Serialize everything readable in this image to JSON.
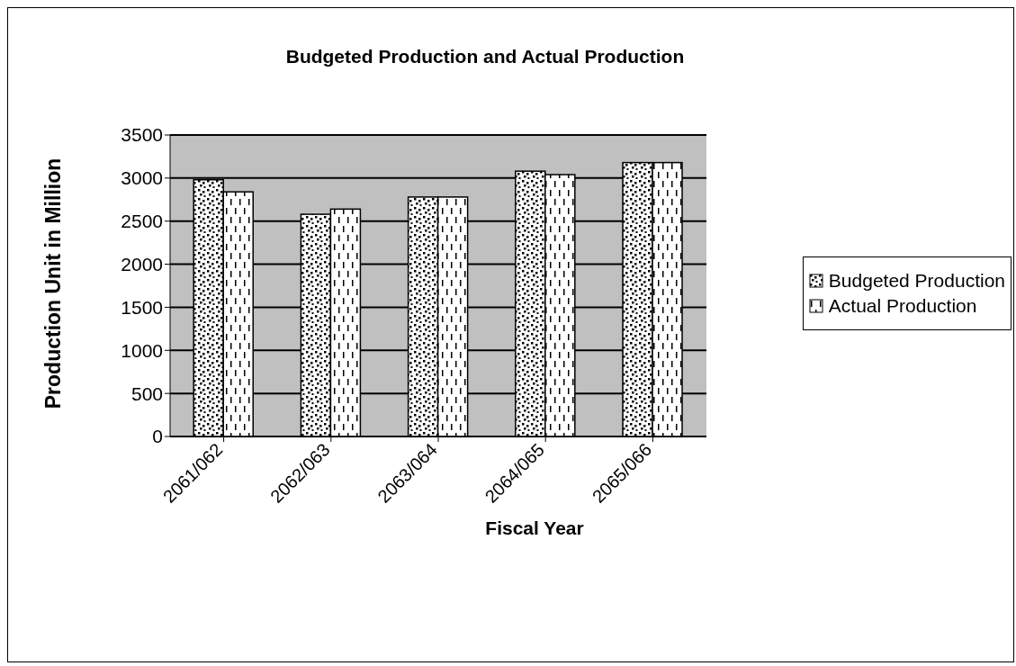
{
  "chart_data": {
    "type": "bar",
    "title": "Budgeted Production and Actual Production",
    "xlabel": "Fiscal Year",
    "ylabel": "Production Unit in Million",
    "categories": [
      "2061/062",
      "2062/063",
      "2063/064",
      "2064/065",
      "2065/066"
    ],
    "series": [
      {
        "name": "Budgeted Production",
        "color": "#ffffff",
        "values": [
          2980,
          2580,
          2780,
          3080,
          3180
        ]
      },
      {
        "name": "Actual Production",
        "color": "#ffffff",
        "values": [
          2840,
          2640,
          2780,
          3040,
          3180
        ]
      }
    ],
    "ylim": [
      0,
      3500
    ],
    "yticks": [
      0,
      500,
      1000,
      1500,
      2000,
      2500,
      3000,
      3500
    ],
    "grid": "y",
    "legend": "right"
  }
}
